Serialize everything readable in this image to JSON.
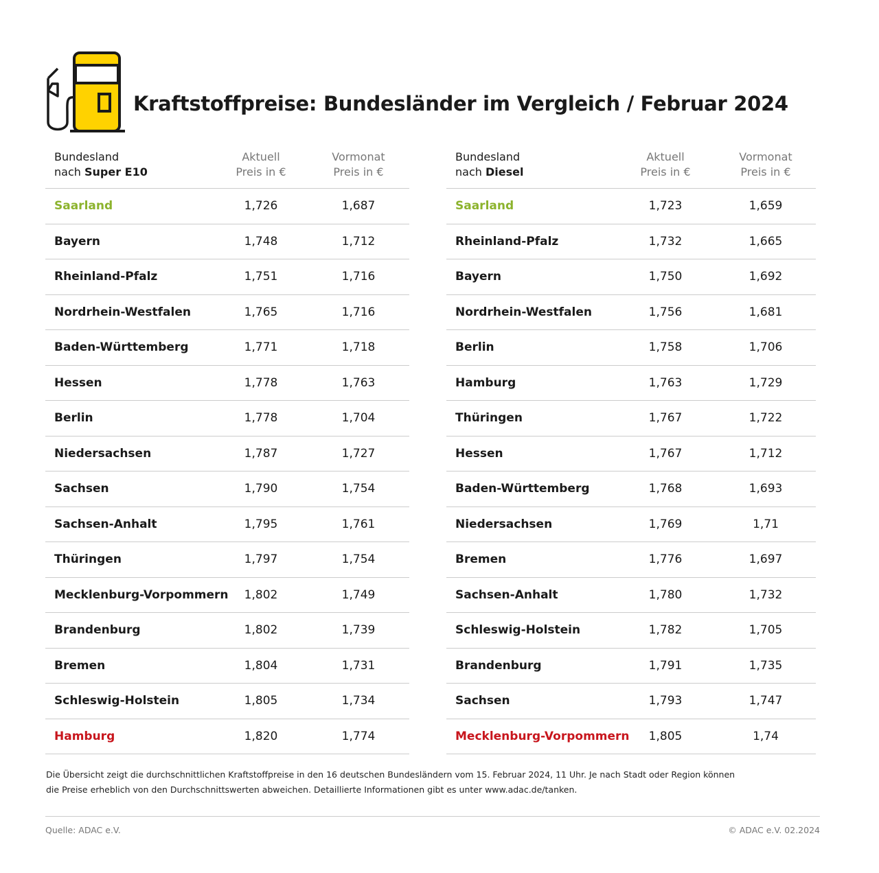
{
  "title": "Kraftstoffpreise: Bundesländer im Vergleich / Februar 2024",
  "colors": {
    "best": "#8cb32d",
    "worst": "#c8161d",
    "pump_yellow": "#ffd200"
  },
  "icon": "fuel-pump-icon",
  "tables": [
    {
      "header": {
        "col1_line1": "Bundesland",
        "col1_prefix": "nach ",
        "col1_fuel": "Super E10",
        "col2_line1": "Aktuell",
        "col2_line2": "Preis in €",
        "col3_line1": "Vormonat",
        "col3_line2": "Preis in €"
      },
      "rows": [
        {
          "name": "Saarland",
          "current": "1,726",
          "previous": "1,687",
          "highlight": "best"
        },
        {
          "name": "Bayern",
          "current": "1,748",
          "previous": "1,712"
        },
        {
          "name": "Rheinland-Pfalz",
          "current": "1,751",
          "previous": "1,716"
        },
        {
          "name": "Nordrhein-Westfalen",
          "current": "1,765",
          "previous": "1,716"
        },
        {
          "name": "Baden-Württemberg",
          "current": "1,771",
          "previous": "1,718"
        },
        {
          "name": "Hessen",
          "current": "1,778",
          "previous": "1,763"
        },
        {
          "name": "Berlin",
          "current": "1,778",
          "previous": "1,704"
        },
        {
          "name": "Niedersachsen",
          "current": "1,787",
          "previous": "1,727"
        },
        {
          "name": "Sachsen",
          "current": "1,790",
          "previous": "1,754"
        },
        {
          "name": "Sachsen-Anhalt",
          "current": "1,795",
          "previous": "1,761"
        },
        {
          "name": "Thüringen",
          "current": "1,797",
          "previous": "1,754"
        },
        {
          "name": "Mecklenburg-Vorpommern",
          "current": "1,802",
          "previous": "1,749"
        },
        {
          "name": "Brandenburg",
          "current": "1,802",
          "previous": "1,739"
        },
        {
          "name": "Bremen",
          "current": "1,804",
          "previous": "1,731"
        },
        {
          "name": "Schleswig-Holstein",
          "current": "1,805",
          "previous": "1,734"
        },
        {
          "name": "Hamburg",
          "current": "1,820",
          "previous": "1,774",
          "highlight": "worst"
        }
      ]
    },
    {
      "header": {
        "col1_line1": "Bundesland",
        "col1_prefix": "nach ",
        "col1_fuel": "Diesel",
        "col2_line1": "Aktuell",
        "col2_line2": "Preis in €",
        "col3_line1": "Vormonat",
        "col3_line2": "Preis in €"
      },
      "rows": [
        {
          "name": "Saarland",
          "current": "1,723",
          "previous": "1,659",
          "highlight": "best"
        },
        {
          "name": "Rheinland-Pfalz",
          "current": "1,732",
          "previous": "1,665"
        },
        {
          "name": "Bayern",
          "current": "1,750",
          "previous": "1,692"
        },
        {
          "name": "Nordrhein-Westfalen",
          "current": "1,756",
          "previous": "1,681"
        },
        {
          "name": "Berlin",
          "current": "1,758",
          "previous": "1,706"
        },
        {
          "name": "Hamburg",
          "current": "1,763",
          "previous": "1,729"
        },
        {
          "name": "Thüringen",
          "current": "1,767",
          "previous": "1,722"
        },
        {
          "name": "Hessen",
          "current": "1,767",
          "previous": "1,712"
        },
        {
          "name": "Baden-Württemberg",
          "current": "1,768",
          "previous": "1,693"
        },
        {
          "name": "Niedersachsen",
          "current": "1,769",
          "previous": "1,71"
        },
        {
          "name": "Bremen",
          "current": "1,776",
          "previous": "1,697"
        },
        {
          "name": "Sachsen-Anhalt",
          "current": "1,780",
          "previous": "1,732"
        },
        {
          "name": "Schleswig-Holstein",
          "current": "1,782",
          "previous": "1,705"
        },
        {
          "name": "Brandenburg",
          "current": "1,791",
          "previous": "1,735"
        },
        {
          "name": "Sachsen",
          "current": "1,793",
          "previous": "1,747"
        },
        {
          "name": "Mecklenburg-Vorpommern",
          "current": "1,805",
          "previous": "1,74",
          "highlight": "worst"
        }
      ]
    }
  ],
  "note": "Die Übersicht zeigt die durchschnittlichen Kraftstoffpreise in den 16 deutschen Bundesländern vom 15. Februar 2024, 11 Uhr. Je nach Stadt oder Region können die Preise erheblich von den Durchschnittswerten abweichen. Detaillierte Informationen gibt es unter www.adac.de/tanken.",
  "source": "Quelle: ADAC e.V.",
  "copyright": "© ADAC e.V. 02.2024"
}
